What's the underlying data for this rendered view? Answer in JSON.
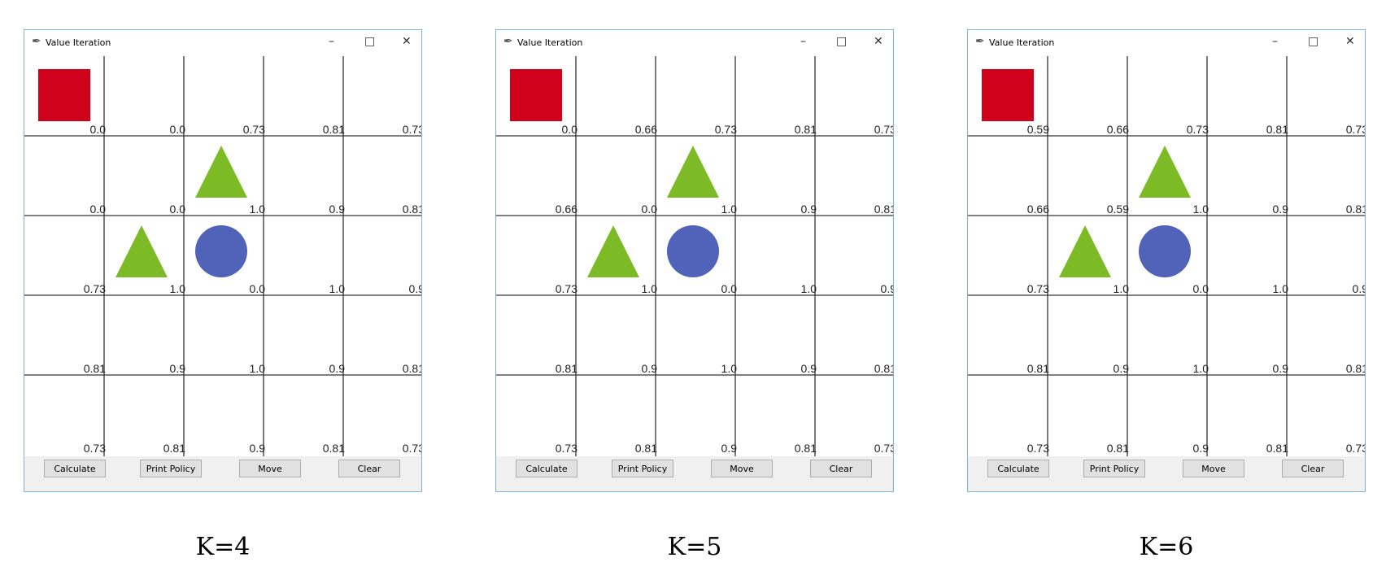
{
  "windows": [
    {
      "title": "Value Iteration",
      "caption": "K=4",
      "values": [
        [
          "0.0",
          "0.0",
          "0.73",
          "0.81",
          "0.73"
        ],
        [
          "0.0",
          "0.0",
          "1.0",
          "0.9",
          "0.81"
        ],
        [
          "0.73",
          "1.0",
          "0.0",
          "1.0",
          "0.9"
        ],
        [
          "0.81",
          "0.9",
          "1.0",
          "0.9",
          "0.81"
        ],
        [
          "0.73",
          "0.81",
          "0.9",
          "0.81",
          "0.73"
        ]
      ],
      "buttons": [
        "Calculate",
        "Print Policy",
        "Move",
        "Clear"
      ]
    },
    {
      "title": "Value Iteration",
      "caption": "K=5",
      "values": [
        [
          "0.0",
          "0.66",
          "0.73",
          "0.81",
          "0.73"
        ],
        [
          "0.66",
          "0.0",
          "1.0",
          "0.9",
          "0.81"
        ],
        [
          "0.73",
          "1.0",
          "0.0",
          "1.0",
          "0.9"
        ],
        [
          "0.81",
          "0.9",
          "1.0",
          "0.9",
          "0.81"
        ],
        [
          "0.73",
          "0.81",
          "0.9",
          "0.81",
          "0.73"
        ]
      ],
      "buttons": [
        "Calculate",
        "Print Policy",
        "Move",
        "Clear"
      ]
    },
    {
      "title": "Value Iteration",
      "caption": "K=6",
      "values": [
        [
          "0.59",
          "0.66",
          "0.73",
          "0.81",
          "0.73"
        ],
        [
          "0.66",
          "0.59",
          "1.0",
          "0.9",
          "0.81"
        ],
        [
          "0.73",
          "1.0",
          "0.0",
          "1.0",
          "0.9"
        ],
        [
          "0.81",
          "0.9",
          "1.0",
          "0.9",
          "0.81"
        ],
        [
          "0.73",
          "0.81",
          "0.9",
          "0.81",
          "0.73"
        ]
      ],
      "buttons": [
        "Calculate",
        "Print Policy",
        "Move",
        "Clear"
      ]
    }
  ]
}
